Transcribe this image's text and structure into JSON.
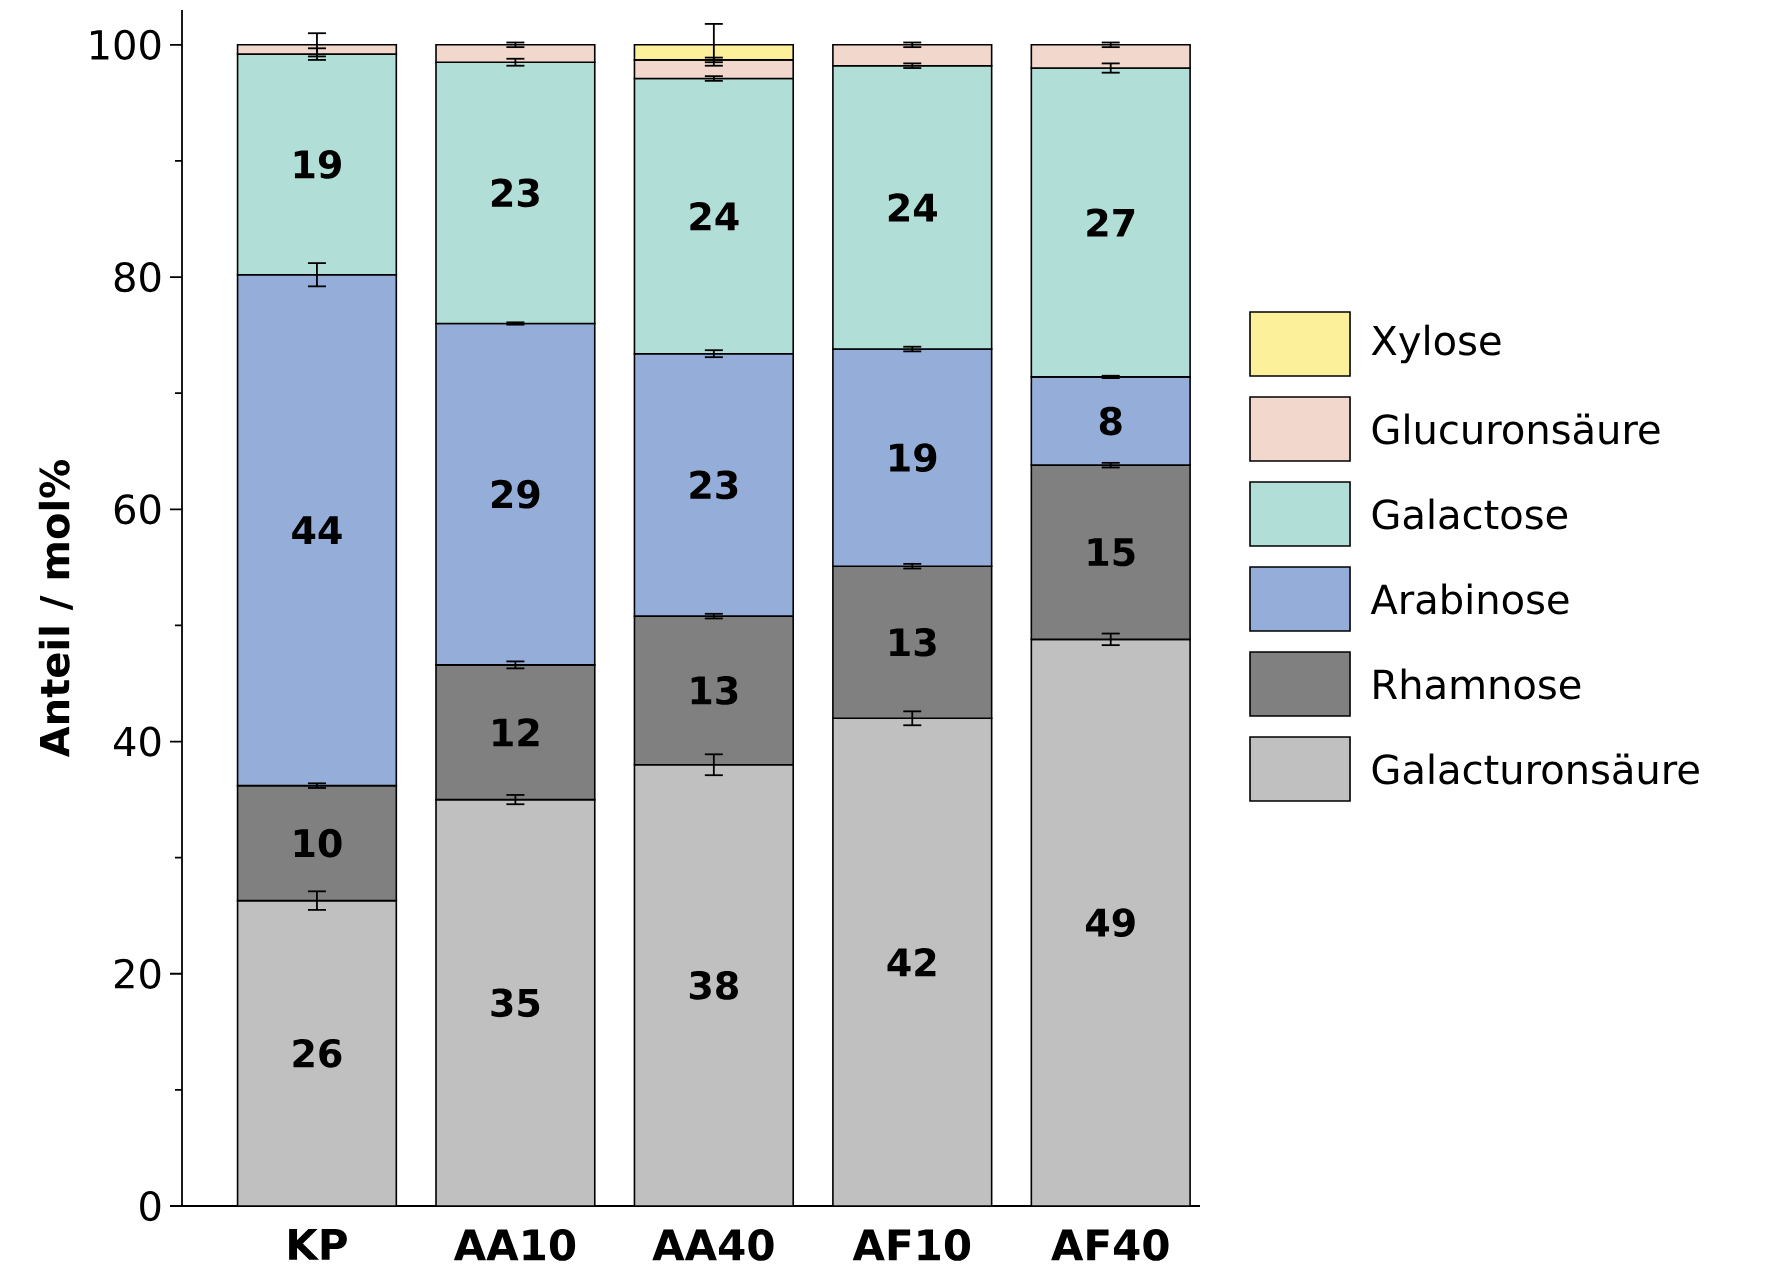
{
  "chart_data": {
    "type": "bar",
    "stacked": true,
    "ylabel": "Anteil / mol%",
    "categories": [
      "KP",
      "AA10",
      "AA40",
      "AF10",
      "AF40"
    ],
    "ylim": [
      0,
      103
    ],
    "yticks": [
      0,
      20,
      40,
      60,
      80,
      100
    ],
    "legend": "right",
    "grid": false,
    "series": [
      {
        "name": "Galacturonsäure",
        "color": "#c0c0c0",
        "values": [
          26.3,
          35.0,
          38.0,
          42.0,
          48.8
        ],
        "errors": [
          0.8,
          0.4,
          0.9,
          0.6,
          0.5
        ],
        "value_labels": [
          "26",
          "35",
          "38",
          "42",
          "49"
        ]
      },
      {
        "name": "Rhamnose",
        "color": "#808080",
        "values": [
          9.9,
          11.6,
          12.8,
          13.1,
          15.0
        ],
        "errors": [
          0.2,
          0.3,
          0.2,
          0.2,
          0.2
        ],
        "value_labels": [
          "10",
          "12",
          "13",
          "13",
          "15"
        ]
      },
      {
        "name": "Arabinose",
        "color": "#95aed9",
        "values": [
          44.0,
          29.4,
          22.6,
          18.7,
          7.6
        ],
        "errors": [
          1.0,
          0.1,
          0.3,
          0.2,
          0.1
        ],
        "value_labels": [
          "44",
          "29",
          "23",
          "19",
          "8"
        ]
      },
      {
        "name": "Galactose",
        "color": "#b1ded6",
        "values": [
          19.0,
          22.5,
          23.7,
          24.4,
          26.6
        ],
        "errors": [
          0.5,
          0.3,
          0.2,
          0.2,
          0.4
        ],
        "value_labels": [
          "19",
          "23",
          "24",
          "24",
          "27"
        ]
      },
      {
        "name": "Glucuronsäure",
        "color": "#f1d7cc",
        "values": [
          0.8,
          1.5,
          1.6,
          1.8,
          2.0
        ],
        "errors": [
          1.0,
          0.2,
          0.2,
          0.2,
          0.2
        ]
      },
      {
        "name": "Xylose",
        "color": "#fdf09a",
        "values": [
          null,
          null,
          1.3,
          null,
          null
        ],
        "errors": [
          null,
          null,
          1.8,
          null,
          null
        ]
      }
    ]
  }
}
